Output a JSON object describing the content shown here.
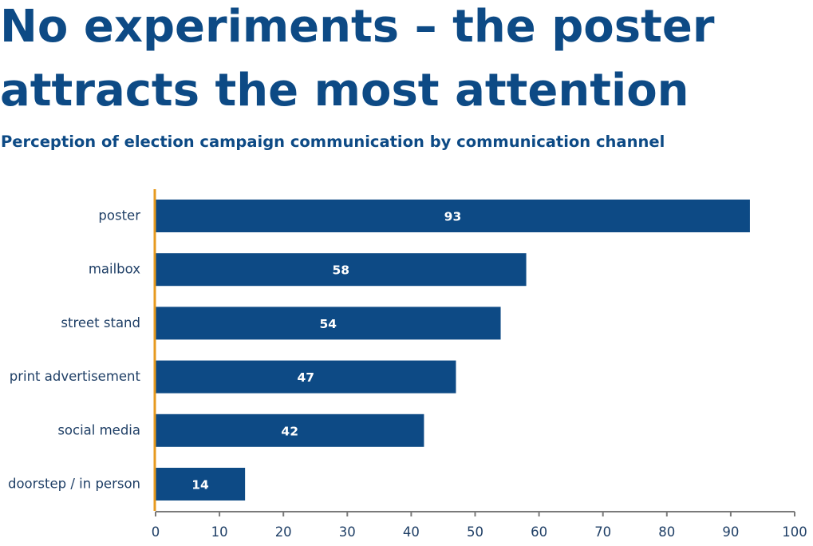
{
  "chart_data": {
    "type": "bar",
    "orientation": "horizontal",
    "title": "No experiments – the poster attracts the most attention",
    "title_lines": [
      "No experiments – the poster",
      "attracts the most attention"
    ],
    "subtitle": "Perception of election campaign communication by communication channel",
    "categories": [
      "poster",
      "mailbox",
      "street stand",
      "print advertisement",
      "social media",
      "doorstep / in person"
    ],
    "values": [
      93,
      58,
      54,
      47,
      42,
      14
    ],
    "value_labels": [
      "93",
      "58",
      "54",
      "47",
      "42",
      "14"
    ],
    "xlabel": "",
    "ylabel": "",
    "xlim": [
      0,
      100
    ],
    "x_ticks": [
      0,
      10,
      20,
      30,
      40,
      50,
      60,
      70,
      80,
      90,
      100
    ],
    "x_tick_labels": [
      "0",
      "10",
      "20",
      "30",
      "40",
      "50",
      "60",
      "70",
      "80",
      "90",
      "100"
    ],
    "grid": false,
    "legend": "none",
    "colors": {
      "bar": "#0d4a85",
      "title": "#0d4a85",
      "baseline": "#e69a1f",
      "axis": "#7a7a7a",
      "labels": "#1f3f66",
      "value_label": "#ffffff"
    }
  }
}
